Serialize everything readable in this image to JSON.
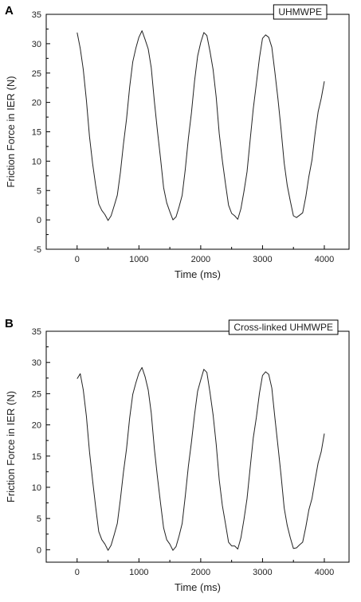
{
  "chart_data": [
    {
      "type": "line",
      "panel_label": "A",
      "legend": "UHMWPE",
      "xlabel": "Time (ms)",
      "ylabel": "Friction Force in IER (N)",
      "xlim": [
        -500,
        4400
      ],
      "ylim": [
        -5,
        35
      ],
      "xticks": [
        "0",
        "1000",
        "2000",
        "3000",
        "4000"
      ],
      "yticks": [
        "-5",
        "0",
        "5",
        "10",
        "15",
        "20",
        "25",
        "30",
        "35"
      ],
      "grid": false,
      "series": [
        {
          "x": [
            0,
            50,
            100,
            150,
            200,
            250,
            300,
            350,
            400,
            450,
            500,
            550,
            600,
            650,
            700,
            750,
            800,
            850,
            900,
            950,
            1000,
            1050,
            1100,
            1150,
            1200,
            1250,
            1300,
            1350,
            1400,
            1450,
            1500,
            1550,
            1600,
            1650,
            1700,
            1750,
            1800,
            1850,
            1900,
            1950,
            2000,
            2050,
            2100,
            2150,
            2200,
            2250,
            2300,
            2350,
            2400,
            2450,
            2500,
            2550,
            2600,
            2650,
            2700,
            2750,
            2800,
            2850,
            2900,
            2950,
            3000,
            3050,
            3100,
            3150,
            3200,
            3250,
            3300,
            3350,
            3400,
            3450,
            3500,
            3550,
            3600,
            3650,
            3700,
            3750,
            3800,
            3850,
            3900,
            3950,
            4000
          ],
          "y": [
            31.5,
            29.5,
            25.5,
            20.0,
            14.5,
            9.5,
            5.5,
            3.0,
            1.5,
            0.5,
            0.2,
            0.6,
            2.0,
            4.5,
            8.0,
            12.5,
            17.5,
            22.5,
            26.5,
            29.5,
            31.0,
            31.8,
            31.0,
            29.0,
            25.5,
            20.5,
            15.0,
            10.0,
            5.8,
            2.8,
            1.0,
            0.3,
            0.4,
            1.8,
            4.5,
            8.5,
            13.5,
            18.5,
            23.5,
            27.5,
            30.5,
            31.8,
            31.0,
            29.0,
            25.5,
            20.5,
            15.0,
            10.0,
            5.8,
            2.8,
            1.0,
            0.3,
            0.4,
            1.8,
            4.5,
            8.5,
            13.5,
            18.5,
            23.5,
            27.5,
            30.5,
            31.8,
            31.0,
            29.0,
            25.5,
            20.5,
            15.0,
            10.0,
            5.8,
            2.8,
            1.0,
            0.3,
            0.4,
            1.5,
            3.8,
            7.0,
            10.5,
            14.5,
            18.0,
            21.0,
            23.5
          ]
        }
      ]
    },
    {
      "type": "line",
      "panel_label": "B",
      "legend": "Cross-linked UHMWPE",
      "xlabel": "Time (ms)",
      "ylabel": "Friction Force in IER (N)",
      "xlim": [
        -500,
        4400
      ],
      "ylim": [
        -2,
        35
      ],
      "xticks": [
        "0",
        "1000",
        "2000",
        "3000",
        "4000"
      ],
      "yticks": [
        "0",
        "5",
        "10",
        "15",
        "20",
        "25",
        "30",
        "35"
      ],
      "grid": false,
      "series": [
        {
          "x": [
            0,
            50,
            100,
            150,
            200,
            250,
            300,
            350,
            400,
            450,
            500,
            550,
            600,
            650,
            700,
            750,
            800,
            850,
            900,
            950,
            1000,
            1050,
            1100,
            1150,
            1200,
            1250,
            1300,
            1350,
            1400,
            1450,
            1500,
            1550,
            1600,
            1650,
            1700,
            1750,
            1800,
            1850,
            1900,
            1950,
            2000,
            2050,
            2100,
            2150,
            2200,
            2250,
            2300,
            2350,
            2400,
            2450,
            2500,
            2550,
            2600,
            2650,
            2700,
            2750,
            2800,
            2850,
            2900,
            2950,
            3000,
            3050,
            3100,
            3150,
            3200,
            3250,
            3300,
            3350,
            3400,
            3450,
            3500,
            3550,
            3600,
            3650,
            3700,
            3750,
            3800,
            3850,
            3900,
            3950,
            4000
          ],
          "y": [
            27.0,
            28.5,
            25.5,
            21.0,
            16.0,
            11.0,
            6.5,
            3.2,
            1.5,
            0.5,
            0.2,
            0.6,
            2.0,
            4.5,
            8.0,
            12.0,
            16.5,
            21.0,
            24.5,
            27.0,
            28.2,
            28.8,
            28.0,
            25.5,
            21.5,
            16.5,
            11.5,
            7.0,
            3.8,
            1.5,
            0.5,
            0.2,
            0.4,
            1.8,
            4.5,
            8.5,
            13.0,
            17.5,
            21.5,
            25.0,
            27.5,
            28.8,
            28.0,
            25.5,
            21.5,
            16.5,
            11.5,
            7.0,
            3.8,
            1.5,
            0.5,
            0.2,
            0.4,
            1.8,
            4.5,
            8.5,
            13.0,
            17.5,
            21.5,
            25.0,
            27.5,
            28.8,
            28.0,
            25.5,
            21.5,
            16.5,
            11.5,
            7.0,
            3.8,
            1.5,
            0.5,
            0.2,
            0.4,
            1.5,
            3.5,
            6.0,
            8.5,
            11.0,
            13.5,
            16.0,
            18.5
          ]
        }
      ]
    }
  ]
}
